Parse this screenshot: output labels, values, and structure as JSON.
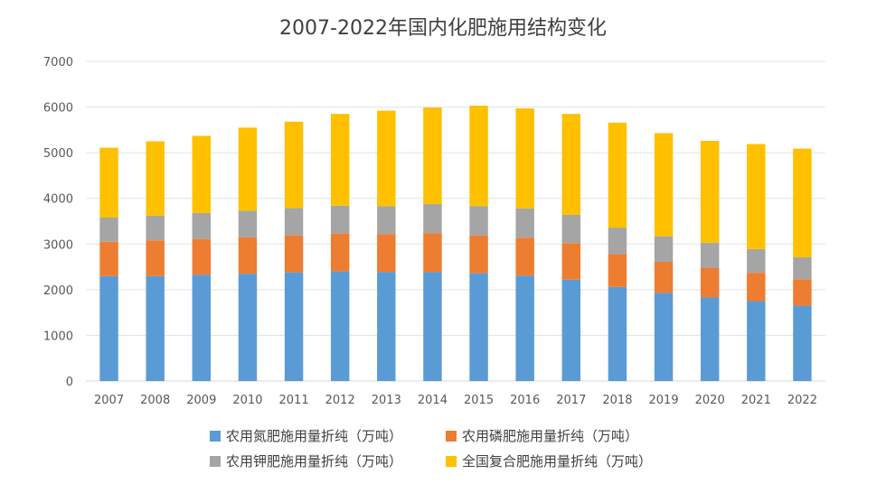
{
  "chart_data": {
    "type": "bar",
    "stacked": true,
    "title": "2007-2022年国内化肥施用结构变化",
    "xlabel": "",
    "ylabel": "",
    "ylim": [
      0,
      7000
    ],
    "yticks": [
      0,
      1000,
      2000,
      3000,
      4000,
      5000,
      6000,
      7000
    ],
    "grid": true,
    "legend_position": "bottom",
    "categories": [
      "2007",
      "2008",
      "2009",
      "2010",
      "2011",
      "2012",
      "2013",
      "2014",
      "2015",
      "2016",
      "2017",
      "2018",
      "2019",
      "2020",
      "2021",
      "2022"
    ],
    "series": [
      {
        "name": "农用氮肥施用量折纯（万吨）",
        "color": "#5B9BD5",
        "values": [
          2300,
          2300,
          2330,
          2350,
          2380,
          2400,
          2390,
          2390,
          2360,
          2310,
          2220,
          2060,
          1930,
          1830,
          1750,
          1650
        ]
      },
      {
        "name": "农用磷肥施用量折纯（万吨）",
        "color": "#ED7D31",
        "values": [
          750,
          780,
          780,
          800,
          810,
          830,
          830,
          850,
          830,
          830,
          800,
          720,
          680,
          650,
          620,
          580
        ]
      },
      {
        "name": "农用钾肥施用量折纯（万吨）",
        "color": "#A5A5A5",
        "values": [
          530,
          540,
          570,
          580,
          600,
          610,
          610,
          640,
          640,
          640,
          620,
          580,
          560,
          550,
          520,
          480
        ]
      },
      {
        "name": "全国复合肥施用量折纯（万吨）",
        "color": "#FFC000",
        "values": [
          1530,
          1630,
          1690,
          1820,
          1890,
          2010,
          2090,
          2110,
          2200,
          2190,
          2210,
          2300,
          2260,
          2230,
          2300,
          2380
        ]
      }
    ]
  }
}
